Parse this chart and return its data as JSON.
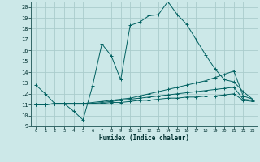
{
  "background_color": "#cce8e8",
  "grid_color": "#aacccc",
  "line_color": "#006060",
  "xlim": [
    -0.5,
    23.5
  ],
  "ylim": [
    9,
    20.5
  ],
  "xticks": [
    0,
    1,
    2,
    3,
    4,
    5,
    6,
    7,
    8,
    9,
    10,
    11,
    12,
    13,
    14,
    15,
    16,
    17,
    18,
    19,
    20,
    21,
    22,
    23
  ],
  "yticks": [
    9,
    10,
    11,
    12,
    13,
    14,
    15,
    16,
    17,
    18,
    19,
    20
  ],
  "xlabel": "Humidex (Indice chaleur)",
  "series1_x": [
    0,
    1,
    2,
    3,
    4,
    5,
    6,
    7,
    8,
    9,
    10,
    11,
    12,
    13,
    14,
    15,
    16,
    17,
    18,
    19,
    20,
    21,
    22,
    23
  ],
  "series1_y": [
    12.8,
    12.0,
    11.1,
    11.1,
    10.4,
    9.6,
    12.7,
    16.6,
    15.5,
    13.3,
    18.3,
    18.6,
    19.2,
    19.3,
    20.5,
    19.3,
    18.4,
    17.0,
    15.6,
    14.3,
    13.3,
    13.1,
    12.2,
    11.5
  ],
  "series2_x": [
    0,
    1,
    2,
    3,
    4,
    5,
    6,
    7,
    8,
    9,
    10,
    11,
    12,
    13,
    14,
    15,
    16,
    17,
    18,
    19,
    20,
    21,
    22,
    23
  ],
  "series2_y": [
    11.0,
    11.0,
    11.1,
    11.1,
    11.1,
    11.1,
    11.2,
    11.3,
    11.4,
    11.5,
    11.6,
    11.8,
    12.0,
    12.2,
    12.4,
    12.6,
    12.8,
    13.0,
    13.2,
    13.5,
    13.8,
    14.1,
    11.8,
    11.5
  ],
  "series3_x": [
    0,
    1,
    2,
    3,
    4,
    5,
    6,
    7,
    8,
    9,
    10,
    11,
    12,
    13,
    14,
    15,
    16,
    17,
    18,
    19,
    20,
    21,
    22,
    23
  ],
  "series3_y": [
    11.0,
    11.0,
    11.1,
    11.1,
    11.1,
    11.1,
    11.1,
    11.2,
    11.3,
    11.4,
    11.5,
    11.6,
    11.7,
    11.8,
    11.9,
    12.0,
    12.1,
    12.2,
    12.3,
    12.4,
    12.5,
    12.6,
    11.5,
    11.4
  ],
  "series4_x": [
    0,
    1,
    2,
    3,
    4,
    5,
    6,
    7,
    8,
    9,
    10,
    11,
    12,
    13,
    14,
    15,
    16,
    17,
    18,
    19,
    20,
    21,
    22,
    23
  ],
  "series4_y": [
    11.0,
    11.0,
    11.1,
    11.1,
    11.1,
    11.1,
    11.1,
    11.1,
    11.2,
    11.2,
    11.3,
    11.4,
    11.4,
    11.5,
    11.6,
    11.6,
    11.7,
    11.7,
    11.8,
    11.8,
    11.9,
    12.0,
    11.4,
    11.3
  ]
}
